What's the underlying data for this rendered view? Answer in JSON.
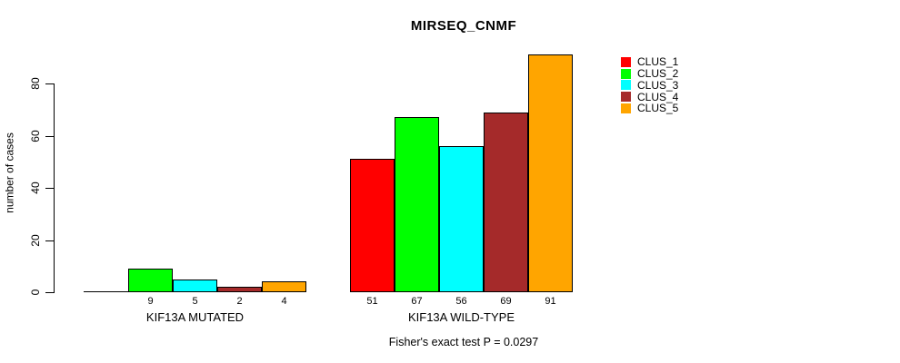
{
  "title": "MIRSEQ_CNMF",
  "caption": "Fisher's exact test P = 0.0297",
  "chart_data": {
    "type": "bar",
    "title": "MIRSEQ_CNMF",
    "xlabel": "",
    "ylabel": "number of cases",
    "ylim": [
      0,
      80
    ],
    "yticks": [
      0,
      20,
      40,
      60,
      80
    ],
    "grid": false,
    "legend_position": "right",
    "annotation": "Fisher's exact test P = 0.0297",
    "categories": [
      "KIF13A MUTATED",
      "KIF13A WILD-TYPE"
    ],
    "series": [
      {
        "name": "CLUS_1",
        "color": "#FF0000",
        "values": [
          0,
          51
        ]
      },
      {
        "name": "CLUS_2",
        "color": "#00FF00",
        "values": [
          9,
          67
        ]
      },
      {
        "name": "CLUS_3",
        "color": "#00FFFF",
        "values": [
          5,
          56
        ]
      },
      {
        "name": "CLUS_4",
        "color": "#A52A2A",
        "values": [
          2,
          69
        ]
      },
      {
        "name": "CLUS_5",
        "color": "#FFA500",
        "values": [
          4,
          91
        ]
      }
    ],
    "bar_value_labels": [
      [
        null,
        9,
        5,
        2,
        4
      ],
      [
        51,
        67,
        56,
        69,
        91
      ]
    ]
  }
}
